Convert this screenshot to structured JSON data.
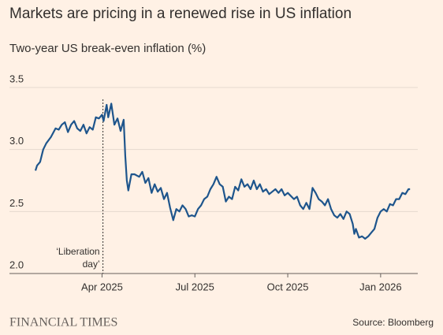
{
  "chart_data": {
    "type": "line",
    "title": "Markets are pricing in a renewed rise in US inflation",
    "subtitle": "Two-year US break-even inflation (%)",
    "source": "Source: Bloomberg",
    "brand": "FINANCIAL TIMES",
    "annotation": {
      "lines": [
        "‘Liberation",
        "day’"
      ],
      "x": 3.03
    },
    "xlim": [
      0.85,
      13.2
    ],
    "xticks": [
      {
        "value": 3,
        "label": "Apr 2025"
      },
      {
        "value": 6,
        "label": "Jul 2025"
      },
      {
        "value": 9,
        "label": "Oct 2025"
      },
      {
        "value": 12,
        "label": "Jan 2026"
      }
    ],
    "ylim": [
      2.0,
      3.5
    ],
    "yticks": [
      {
        "value": 2.0,
        "label": "2.0"
      },
      2.5,
      {
        "value": 3.0,
        "label": "3.0"
      },
      3.5
    ],
    "grid": true,
    "x": [
      0.85,
      0.9,
      1.0,
      1.1,
      1.2,
      1.35,
      1.5,
      1.6,
      1.7,
      1.8,
      1.9,
      2.0,
      2.1,
      2.2,
      2.3,
      2.4,
      2.5,
      2.6,
      2.7,
      2.8,
      2.9,
      3.0,
      3.05,
      3.15,
      3.2,
      3.3,
      3.4,
      3.5,
      3.6,
      3.7,
      3.75,
      3.8,
      3.85,
      3.95,
      4.05,
      4.2,
      4.3,
      4.4,
      4.5,
      4.6,
      4.7,
      4.8,
      4.9,
      5.0,
      5.1,
      5.2,
      5.3,
      5.4,
      5.5,
      5.6,
      5.7,
      5.8,
      5.9,
      6.0,
      6.1,
      6.2,
      6.3,
      6.4,
      6.5,
      6.6,
      6.7,
      6.8,
      6.9,
      7.0,
      7.1,
      7.2,
      7.3,
      7.4,
      7.5,
      7.6,
      7.7,
      7.8,
      7.9,
      8.0,
      8.1,
      8.2,
      8.3,
      8.4,
      8.5,
      8.6,
      8.7,
      8.8,
      8.9,
      9.0,
      9.2,
      9.3,
      9.4,
      9.5,
      9.6,
      9.7,
      9.8,
      9.9,
      10.0,
      10.1,
      10.2,
      10.3,
      10.4,
      10.5,
      10.6,
      10.7,
      10.8,
      10.9,
      11.0,
      11.1,
      11.15,
      11.2,
      11.3,
      11.4,
      11.5,
      11.6,
      11.7,
      11.8,
      11.9,
      12.0,
      12.1,
      12.2,
      12.3,
      12.4,
      12.5,
      12.6,
      12.7,
      12.8,
      12.9,
      12.95
    ],
    "series": [
      {
        "name": "Two-year US break-even inflation",
        "color": "#1e558c",
        "values": [
          2.83,
          2.87,
          2.9,
          3.0,
          3.05,
          3.1,
          3.17,
          3.16,
          3.2,
          3.22,
          3.14,
          3.2,
          3.23,
          3.17,
          3.15,
          3.2,
          3.13,
          3.18,
          3.16,
          3.26,
          3.25,
          3.28,
          3.23,
          3.36,
          3.26,
          3.37,
          3.2,
          3.25,
          3.15,
          3.24,
          2.95,
          2.75,
          2.67,
          2.8,
          2.8,
          2.78,
          2.82,
          2.73,
          2.77,
          2.65,
          2.72,
          2.66,
          2.69,
          2.6,
          2.65,
          2.53,
          2.43,
          2.52,
          2.5,
          2.55,
          2.52,
          2.46,
          2.47,
          2.46,
          2.52,
          2.55,
          2.6,
          2.62,
          2.68,
          2.72,
          2.78,
          2.72,
          2.7,
          2.58,
          2.62,
          2.6,
          2.7,
          2.67,
          2.76,
          2.7,
          2.72,
          2.68,
          2.75,
          2.68,
          2.72,
          2.66,
          2.68,
          2.64,
          2.66,
          2.68,
          2.65,
          2.68,
          2.63,
          2.65,
          2.6,
          2.62,
          2.55,
          2.52,
          2.57,
          2.52,
          2.69,
          2.65,
          2.6,
          2.58,
          2.55,
          2.6,
          2.52,
          2.47,
          2.45,
          2.48,
          2.44,
          2.5,
          2.48,
          2.4,
          2.32,
          2.36,
          2.29,
          2.3,
          2.28,
          2.3,
          2.33,
          2.36,
          2.45,
          2.5,
          2.52,
          2.5,
          2.56,
          2.55,
          2.6,
          2.6,
          2.65,
          2.64,
          2.68,
          2.68
        ]
      }
    ]
  }
}
